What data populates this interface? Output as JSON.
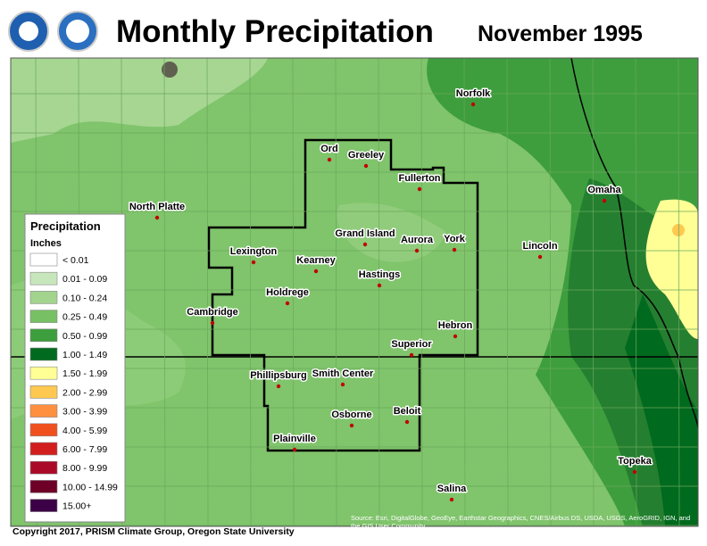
{
  "header": {
    "title": "Monthly Precipitation",
    "date": "November 1995"
  },
  "cities": [
    "Norfolk",
    "Ord",
    "Greeley",
    "Fullerton",
    "North Platte",
    "Omaha",
    "Grand Island",
    "Aurora",
    "York",
    "Lincoln",
    "Lexington",
    "Kearney",
    "Hastings",
    "Holdrege",
    "Cambridge",
    "Hebron",
    "Superior",
    "Phillipsburg",
    "Smith Center",
    "Beloit",
    "Osborne",
    "Plainville",
    "Topeka",
    "Salina"
  ],
  "legend": {
    "title": "Precipitation",
    "units": "Inches",
    "items": [
      {
        "label": "< 0.01",
        "color": "#ffffff"
      },
      {
        "label": "0.01 - 0.09",
        "color": "#c8e6bc"
      },
      {
        "label": "0.10 - 0.24",
        "color": "#a2d48e"
      },
      {
        "label": "0.25 - 0.49",
        "color": "#78c064"
      },
      {
        "label": "0.50 - 0.99",
        "color": "#3c9e3c"
      },
      {
        "label": "1.00 - 1.49",
        "color": "#006a1e"
      },
      {
        "label": "1.50 - 1.99",
        "color": "#ffff96"
      },
      {
        "label": "2.00 - 2.99",
        "color": "#ffc850"
      },
      {
        "label": "3.00 - 3.99",
        "color": "#ff9040"
      },
      {
        "label": "4.00 - 5.99",
        "color": "#f0501e"
      },
      {
        "label": "6.00 - 7.99",
        "color": "#d21e1e"
      },
      {
        "label": "8.00 - 9.99",
        "color": "#aa0a28"
      },
      {
        "label": "10.00 - 14.99",
        "color": "#6e0028"
      },
      {
        "label": "15.00+",
        "color": "#3c0046"
      }
    ]
  },
  "footer": {
    "copyright": "Copyright 2017, PRISM Climate Group, Oregon State University",
    "source": "Source: Esri, DigitalGlobe, GeoEye, Earthstar Geographics, CNES/Airbus DS, USDA, USGS, AeroGRID, IGN, and the GIS User Community"
  }
}
